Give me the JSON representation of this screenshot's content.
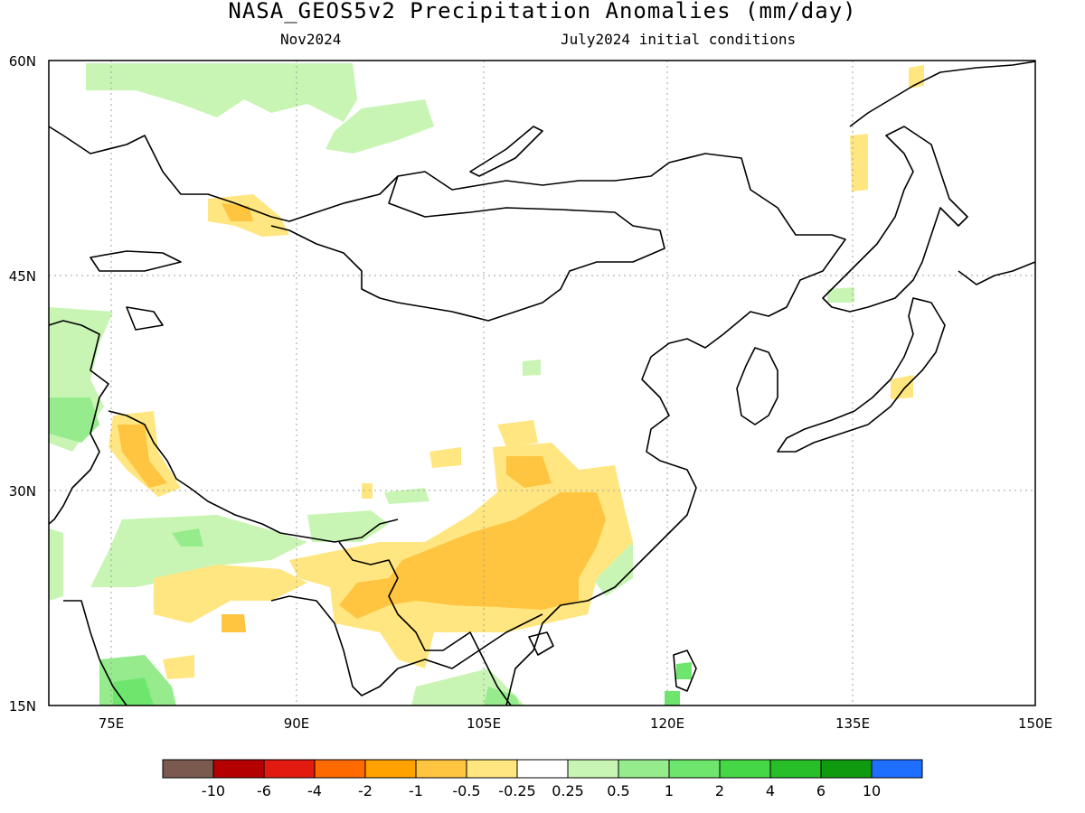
{
  "title": "NASA_GEOS5v2 Precipitation Anomalies (mm/day)",
  "subtitle_left": "Nov2024",
  "subtitle_right": "July2024 initial conditions",
  "map": {
    "lon_range": [
      70,
      150
    ],
    "lat_range": [
      15,
      60
    ],
    "x_ticks": [
      "75E",
      "90E",
      "105E",
      "120E",
      "135E",
      "150E"
    ],
    "y_ticks": [
      "60N",
      "45N",
      "30N",
      "15N"
    ],
    "gridlines": true
  },
  "colorbar": {
    "colors": [
      "#7a5a4f",
      "#b40000",
      "#e21a0f",
      "#ff6a00",
      "#ffa200",
      "#ffc440",
      "#ffe680",
      "#ffffff",
      "#c8f5b4",
      "#96eb8c",
      "#6ee66e",
      "#46d746",
      "#28be28",
      "#0f9b0f",
      "#1e6eff"
    ],
    "labels": [
      "-10",
      "-6",
      "-4",
      "-2",
      "-1",
      "-0.5",
      "-0.25",
      "0.25",
      "0.5",
      "1",
      "2",
      "4",
      "6",
      "10"
    ]
  }
}
